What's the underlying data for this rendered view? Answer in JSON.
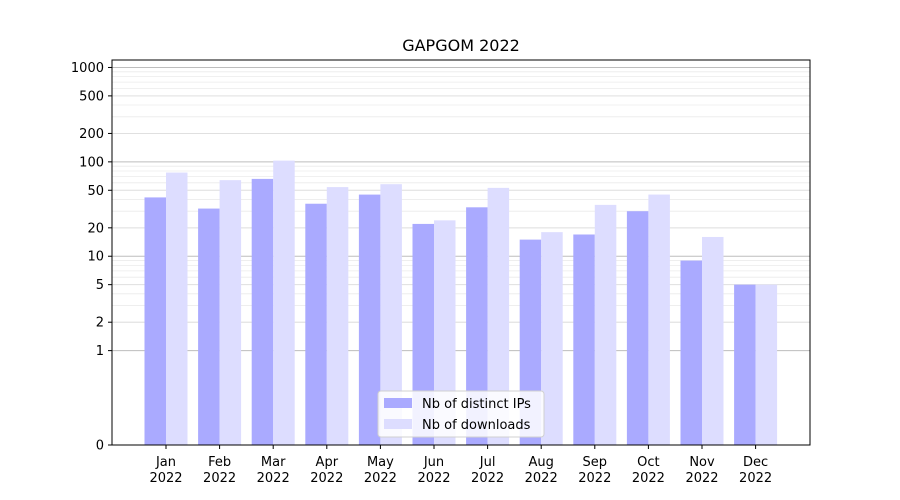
{
  "chart_data": {
    "type": "bar",
    "title": "GAPGOM 2022",
    "xlabel": "",
    "ylabel": "",
    "yscale": "symlog",
    "ylim": [
      0,
      1200
    ],
    "grid": "y",
    "legend_position": "bottom-center",
    "categories": [
      "Jan\n2022",
      "Feb\n2022",
      "Mar\n2022",
      "Apr\n2022",
      "May\n2022",
      "Jun\n2022",
      "Jul\n2022",
      "Aug\n2022",
      "Sep\n2022",
      "Oct\n2022",
      "Nov\n2022",
      "Dec\n2022"
    ],
    "yticks": [
      0,
      1,
      2,
      5,
      10,
      20,
      50,
      100,
      200,
      500,
      1000
    ],
    "ytick_labels": [
      "0",
      "1",
      "2",
      "5",
      "10",
      "20",
      "50",
      "100",
      "200",
      "500",
      "1000"
    ],
    "series": [
      {
        "name": "Nb of distinct IPs",
        "color": "#aaaaff",
        "values": [
          42,
          32,
          66,
          36,
          45,
          22,
          33,
          15,
          17,
          30,
          9,
          5
        ]
      },
      {
        "name": "Nb of downloads",
        "color": "#ddddff",
        "values": [
          77,
          64,
          103,
          54,
          58,
          24,
          53,
          18,
          35,
          45,
          16,
          5
        ]
      }
    ]
  }
}
